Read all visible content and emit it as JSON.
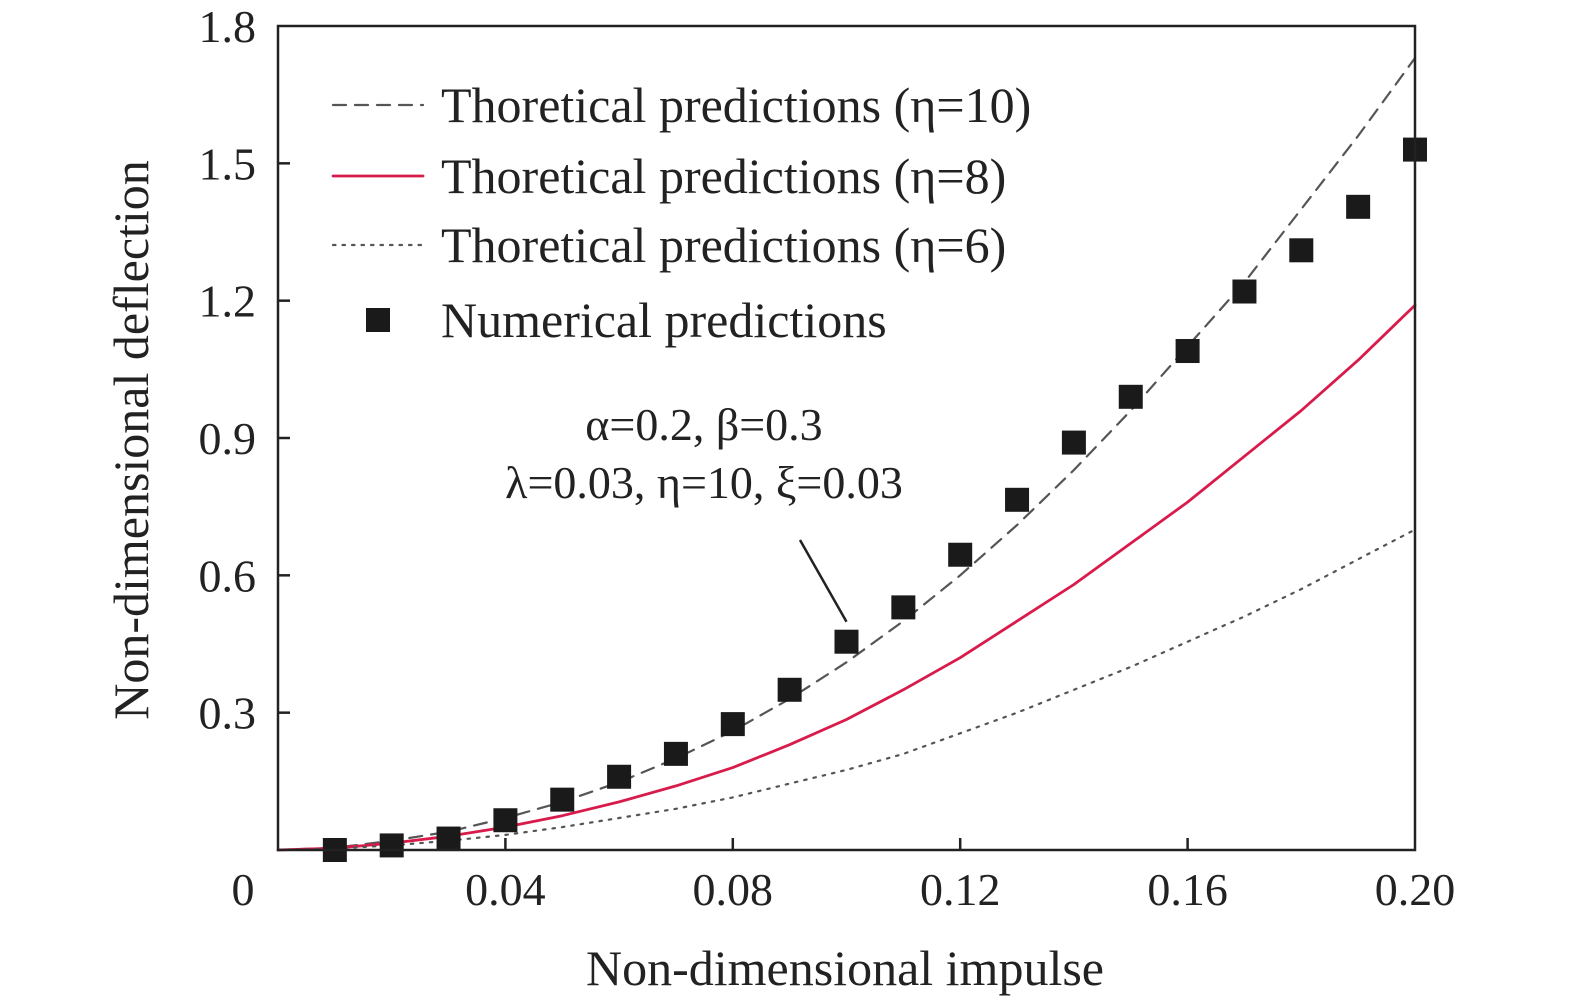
{
  "chart_data": {
    "type": "line",
    "title": "",
    "xlabel": "Non-dimensional impulse",
    "ylabel": "Non-dimensional deflection",
    "xlim": [
      0,
      0.2
    ],
    "ylim": [
      0,
      1.8
    ],
    "x_ticks": [
      {
        "value": 0,
        "label": "0"
      },
      {
        "value": 0.04,
        "label": "0.04"
      },
      {
        "value": 0.08,
        "label": "0.08"
      },
      {
        "value": 0.12,
        "label": "0.12"
      },
      {
        "value": 0.16,
        "label": "0.16"
      },
      {
        "value": 0.2,
        "label": "0.20"
      }
    ],
    "y_ticks": [
      {
        "value": 0.3,
        "label": "0.3"
      },
      {
        "value": 0.6,
        "label": "0.6"
      },
      {
        "value": 0.9,
        "label": "0.9"
      },
      {
        "value": 1.2,
        "label": "1.2"
      },
      {
        "value": 1.5,
        "label": "1.5"
      },
      {
        "value": 1.8,
        "label": "1.8"
      }
    ],
    "grid": false,
    "legend_position": "top-left",
    "series": [
      {
        "name": "Thoretical predictions (η=10)",
        "style": "dashed",
        "color": "#555555",
        "x": [
          0.01,
          0.02,
          0.03,
          0.04,
          0.05,
          0.06,
          0.07,
          0.08,
          0.09,
          0.1,
          0.11,
          0.12,
          0.13,
          0.14,
          0.15,
          0.16,
          0.17,
          0.18,
          0.19,
          0.2
        ],
        "y": [
          0.005,
          0.02,
          0.04,
          0.07,
          0.105,
          0.148,
          0.2,
          0.26,
          0.33,
          0.41,
          0.5,
          0.6,
          0.71,
          0.83,
          0.96,
          1.1,
          1.24,
          1.4,
          1.56,
          1.73
        ]
      },
      {
        "name": "Thoretical predictions (η=8)",
        "style": "solid",
        "color": "#d81b4a",
        "x": [
          0.01,
          0.02,
          0.03,
          0.04,
          0.05,
          0.06,
          0.07,
          0.08,
          0.09,
          0.1,
          0.11,
          0.12,
          0.13,
          0.14,
          0.15,
          0.16,
          0.17,
          0.18,
          0.19,
          0.2
        ],
        "y": [
          0.004,
          0.015,
          0.03,
          0.05,
          0.075,
          0.105,
          0.14,
          0.18,
          0.23,
          0.285,
          0.35,
          0.42,
          0.5,
          0.58,
          0.67,
          0.76,
          0.86,
          0.96,
          1.07,
          1.19
        ]
      },
      {
        "name": "Thoretical predictions (η=6)",
        "style": "dotted",
        "color": "#555555",
        "x": [
          0.01,
          0.02,
          0.03,
          0.04,
          0.05,
          0.06,
          0.07,
          0.08,
          0.09,
          0.1,
          0.11,
          0.12,
          0.13,
          0.14,
          0.15,
          0.16,
          0.17,
          0.18,
          0.19,
          0.2
        ],
        "y": [
          0.003,
          0.01,
          0.02,
          0.033,
          0.05,
          0.07,
          0.09,
          0.115,
          0.145,
          0.175,
          0.21,
          0.255,
          0.3,
          0.35,
          0.4,
          0.455,
          0.51,
          0.57,
          0.635,
          0.7
        ]
      },
      {
        "name": "Numerical predictions",
        "style": "markers",
        "color": "#1a1a1a",
        "x": [
          0.01,
          0.02,
          0.03,
          0.04,
          0.05,
          0.06,
          0.07,
          0.08,
          0.09,
          0.1,
          0.11,
          0.12,
          0.13,
          0.14,
          0.15,
          0.16,
          0.17,
          0.18,
          0.19,
          0.2
        ],
        "y": [
          0.0,
          0.01,
          0.025,
          0.065,
          0.11,
          0.16,
          0.21,
          0.275,
          0.35,
          0.455,
          0.53,
          0.645,
          0.765,
          0.89,
          0.99,
          1.09,
          1.22,
          1.31,
          1.405,
          1.53
        ]
      }
    ],
    "annotation": {
      "line1": "α=0.2, β=0.3",
      "line2": "λ=0.03, η=10, ξ=0.03",
      "arrow_target": {
        "x": 0.1,
        "y": 0.455
      }
    }
  }
}
